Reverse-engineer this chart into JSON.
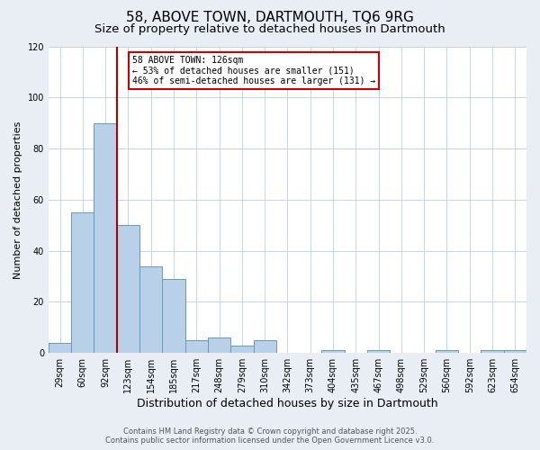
{
  "title": "58, ABOVE TOWN, DARTMOUTH, TQ6 9RG",
  "subtitle": "Size of property relative to detached houses in Dartmouth",
  "xlabel": "Distribution of detached houses by size in Dartmouth",
  "ylabel": "Number of detached properties",
  "categories": [
    "29sqm",
    "60sqm",
    "92sqm",
    "123sqm",
    "154sqm",
    "185sqm",
    "217sqm",
    "248sqm",
    "279sqm",
    "310sqm",
    "342sqm",
    "373sqm",
    "404sqm",
    "435sqm",
    "467sqm",
    "498sqm",
    "529sqm",
    "560sqm",
    "592sqm",
    "623sqm",
    "654sqm"
  ],
  "values": [
    4,
    55,
    90,
    50,
    34,
    29,
    5,
    6,
    3,
    5,
    0,
    0,
    1,
    0,
    1,
    0,
    0,
    1,
    0,
    1,
    1
  ],
  "bar_color": "#b8d0e8",
  "bar_edge_color": "#6699bb",
  "property_line_color": "#aa0000",
  "property_line_x": 3.5,
  "ylim": [
    0,
    120
  ],
  "yticks": [
    0,
    20,
    40,
    60,
    80,
    100,
    120
  ],
  "annotation_text_line1": "58 ABOVE TOWN: 126sqm",
  "annotation_text_line2": "← 53% of detached houses are smaller (151)",
  "annotation_text_line3": "46% of semi-detached houses are larger (131) →",
  "annotation_box_color": "#ffffff",
  "annotation_border_color": "#cc0000",
  "footer1": "Contains HM Land Registry data © Crown copyright and database right 2025.",
  "footer2": "Contains public sector information licensed under the Open Government Licence v3.0.",
  "bg_color": "#e8eef4",
  "plot_bg_color": "#ffffff",
  "grid_color": "#c5d5e5",
  "title_fontsize": 11,
  "subtitle_fontsize": 9.5,
  "xlabel_fontsize": 9,
  "ylabel_fontsize": 8,
  "tick_fontsize": 7,
  "annotation_fontsize": 7,
  "footer_fontsize": 6
}
